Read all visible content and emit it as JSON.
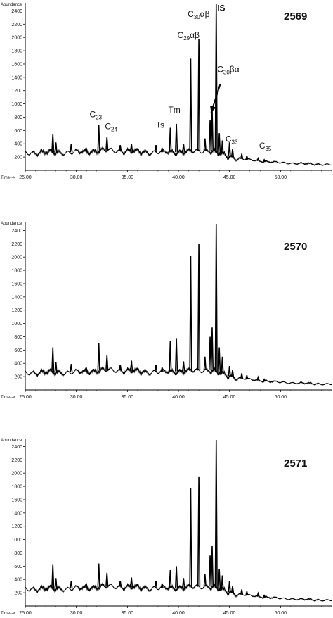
{
  "figure": {
    "background": "#ffffff",
    "trace_color": "#000000"
  },
  "chart_data": [
    {
      "type": "line",
      "title": "2569",
      "ylabel": "Abundance",
      "xlabel": "Time-->",
      "xlim": [
        25.0,
        55.0
      ],
      "ylim": [
        0,
        2500
      ],
      "yticks": [
        200,
        400,
        600,
        800,
        1000,
        1200,
        1400,
        1600,
        1800,
        2000,
        2200,
        2400
      ],
      "ytick_labels": [
        "200",
        "400",
        "600",
        "800",
        "1000",
        "1200",
        "1400",
        "1600",
        "1800",
        "2000",
        "2200",
        "2400"
      ],
      "xticks": [
        25.0,
        30.0,
        35.0,
        40.0,
        45.0,
        50.0
      ],
      "xtick_labels": [
        "25.00",
        "30.00",
        "35.00",
        "40.00",
        "45.00",
        "50.00"
      ],
      "baseline": [
        [
          25.0,
          260
        ],
        [
          27.0,
          270
        ],
        [
          29.0,
          268
        ],
        [
          31.0,
          280
        ],
        [
          33.0,
          300
        ],
        [
          35.0,
          290
        ],
        [
          37.0,
          270
        ],
        [
          39.0,
          275
        ],
        [
          41.0,
          280
        ],
        [
          43.0,
          300
        ],
        [
          44.0,
          255
        ],
        [
          45.0,
          210
        ],
        [
          46.0,
          175
        ],
        [
          48.0,
          140
        ],
        [
          50.0,
          115
        ],
        [
          52.0,
          100
        ],
        [
          55.0,
          85
        ]
      ],
      "peaks": [
        [
          27.7,
          550
        ],
        [
          28.0,
          420
        ],
        [
          29.5,
          400
        ],
        [
          31.0,
          320
        ],
        [
          32.2,
          680
        ],
        [
          33.0,
          500
        ],
        [
          34.3,
          380
        ],
        [
          35.4,
          400
        ],
        [
          37.8,
          380
        ],
        [
          38.4,
          340
        ],
        [
          39.2,
          640
        ],
        [
          39.8,
          700
        ],
        [
          40.5,
          400
        ],
        [
          41.2,
          1680
        ],
        [
          42.0,
          1980
        ],
        [
          42.6,
          480
        ],
        [
          43.1,
          760
        ],
        [
          43.3,
          920
        ],
        [
          43.7,
          2500
        ],
        [
          44.0,
          560
        ],
        [
          44.3,
          450
        ],
        [
          45.0,
          420
        ],
        [
          45.3,
          320
        ],
        [
          46.2,
          250
        ],
        [
          46.7,
          220
        ],
        [
          47.8,
          180
        ],
        [
          48.4,
          160
        ]
      ],
      "annotations": [
        {
          "text": "C",
          "sub": "23",
          "x": 31.3,
          "y": 800
        },
        {
          "text": "C",
          "sub": "24",
          "x": 32.8,
          "y": 620
        },
        {
          "text": "Ts",
          "x": 37.8,
          "y": 640
        },
        {
          "text": "Tm",
          "x": 39.0,
          "y": 870
        },
        {
          "text": "C",
          "sub": "29",
          "post": "αβ",
          "x": 39.9,
          "y": 1990
        },
        {
          "text": "C",
          "sub": "30",
          "post": "αβ",
          "x": 40.9,
          "y": 2310
        },
        {
          "text": "IS",
          "x": 43.8,
          "y": 2400,
          "bold": true
        },
        {
          "text": "C",
          "sub": "30",
          "post": "βα",
          "x": 43.8,
          "y": 1480
        },
        {
          "text": "C",
          "sub": "33",
          "x": 44.6,
          "y": 430
        },
        {
          "text": "C",
          "sub": "35",
          "x": 47.9,
          "y": 330
        }
      ],
      "arrow": {
        "from": [
          44.1,
          1300
        ],
        "to": [
          43.2,
          870
        ]
      }
    },
    {
      "type": "line",
      "title": "2570",
      "ylabel": "Abundance",
      "xlabel": "Time-->",
      "xlim": [
        25.0,
        55.0
      ],
      "ylim": [
        0,
        2500
      ],
      "yticks": [
        200,
        400,
        600,
        800,
        1000,
        1200,
        1400,
        1600,
        1800,
        2000,
        2200,
        2400
      ],
      "ytick_labels": [
        "200",
        "400",
        "600",
        "800",
        "1000",
        "1200",
        "1400",
        "1600",
        "1800",
        "2000",
        "2200",
        "2400"
      ],
      "xticks": [
        25.0,
        30.0,
        35.0,
        40.0,
        45.0,
        50.0
      ],
      "xtick_labels": [
        "25.00",
        "30.00",
        "35.00",
        "40.00",
        "45.00",
        "50.00"
      ],
      "baseline": [
        [
          25.0,
          255
        ],
        [
          27.0,
          265
        ],
        [
          29.0,
          262
        ],
        [
          31.0,
          275
        ],
        [
          33.0,
          298
        ],
        [
          35.0,
          290
        ],
        [
          37.0,
          268
        ],
        [
          39.0,
          275
        ],
        [
          41.0,
          285
        ],
        [
          43.0,
          300
        ],
        [
          44.0,
          255
        ],
        [
          45.0,
          210
        ],
        [
          46.0,
          175
        ],
        [
          48.0,
          140
        ],
        [
          50.0,
          115
        ],
        [
          52.0,
          100
        ],
        [
          55.0,
          85
        ]
      ],
      "peaks": [
        [
          27.7,
          640
        ],
        [
          28.0,
          420
        ],
        [
          29.5,
          390
        ],
        [
          31.0,
          320
        ],
        [
          32.2,
          710
        ],
        [
          33.0,
          520
        ],
        [
          34.3,
          380
        ],
        [
          35.4,
          440
        ],
        [
          37.8,
          380
        ],
        [
          38.4,
          340
        ],
        [
          39.2,
          740
        ],
        [
          39.8,
          780
        ],
        [
          40.5,
          430
        ],
        [
          41.2,
          2020
        ],
        [
          42.0,
          2200
        ],
        [
          42.6,
          500
        ],
        [
          43.1,
          800
        ],
        [
          43.3,
          940
        ],
        [
          43.7,
          2500
        ],
        [
          44.0,
          640
        ],
        [
          44.3,
          500
        ],
        [
          45.0,
          360
        ],
        [
          45.3,
          300
        ],
        [
          46.2,
          250
        ],
        [
          46.7,
          220
        ],
        [
          47.8,
          190
        ],
        [
          48.4,
          160
        ]
      ],
      "annotations": [],
      "arrow": null
    },
    {
      "type": "line",
      "title": "2571",
      "ylabel": "Abundance",
      "xlabel": "Time-->",
      "xlim": [
        25.0,
        55.0
      ],
      "ylim": [
        0,
        2500
      ],
      "yticks": [
        200,
        400,
        600,
        800,
        1000,
        1200,
        1400,
        1600,
        1800,
        2000,
        2200,
        2400
      ],
      "ytick_labels": [
        "200",
        "400",
        "600",
        "800",
        "1000",
        "1200",
        "1400",
        "1600",
        "1800",
        "2000",
        "2200",
        "2400"
      ],
      "xticks": [
        25.0,
        30.0,
        35.0,
        40.0,
        45.0,
        50.0
      ],
      "xtick_labels": [
        "25.00",
        "30.00",
        "35.00",
        "40.00",
        "45.00",
        "50.00"
      ],
      "baseline": [
        [
          25.0,
          255
        ],
        [
          27.0,
          262
        ],
        [
          29.0,
          260
        ],
        [
          31.0,
          272
        ],
        [
          33.0,
          295
        ],
        [
          35.0,
          288
        ],
        [
          37.0,
          268
        ],
        [
          39.0,
          272
        ],
        [
          41.0,
          282
        ],
        [
          43.0,
          298
        ],
        [
          44.0,
          255
        ],
        [
          45.0,
          210
        ],
        [
          46.0,
          175
        ],
        [
          48.0,
          140
        ],
        [
          50.0,
          115
        ],
        [
          52.0,
          100
        ],
        [
          55.0,
          85
        ]
      ],
      "peaks": [
        [
          27.7,
          630
        ],
        [
          28.0,
          420
        ],
        [
          29.5,
          380
        ],
        [
          31.0,
          320
        ],
        [
          32.2,
          640
        ],
        [
          33.0,
          500
        ],
        [
          34.3,
          380
        ],
        [
          35.4,
          430
        ],
        [
          37.8,
          380
        ],
        [
          38.4,
          340
        ],
        [
          39.2,
          540
        ],
        [
          39.8,
          600
        ],
        [
          40.5,
          420
        ],
        [
          41.2,
          1780
        ],
        [
          42.0,
          1950
        ],
        [
          42.6,
          480
        ],
        [
          43.1,
          760
        ],
        [
          43.3,
          900
        ],
        [
          43.7,
          2500
        ],
        [
          44.0,
          560
        ],
        [
          44.3,
          460
        ],
        [
          45.0,
          380
        ],
        [
          45.3,
          300
        ],
        [
          46.2,
          250
        ],
        [
          46.7,
          220
        ],
        [
          47.8,
          190
        ],
        [
          48.4,
          160
        ]
      ],
      "annotations": [],
      "arrow": null
    }
  ]
}
